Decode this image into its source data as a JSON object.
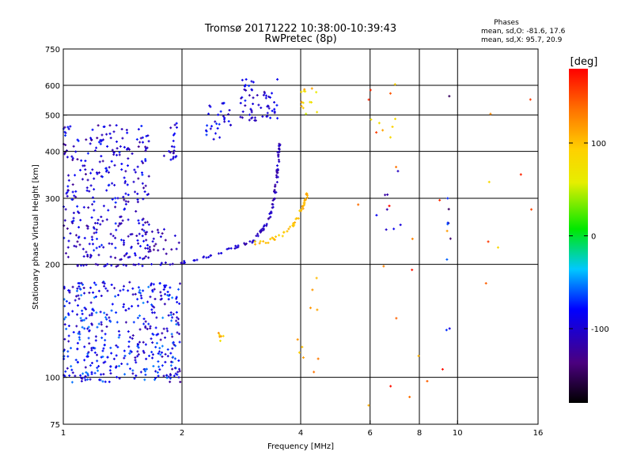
{
  "chart_data": {
    "type": "scatter",
    "title": "Tromsø 20171222 10:38:00-10:39:43",
    "subtitle": "RwPretec (8p)",
    "stats_heading": "Phases",
    "stats_lines": [
      "mean, sd,O: -81.6, 17.6",
      "mean, sd,X:  95.7, 20.9"
    ],
    "xlabel": "Frequency [MHz]",
    "ylabel": "Stationary phase Virtual Height [km]",
    "x_scale": "log",
    "y_scale": "log",
    "xlim": [
      1,
      16
    ],
    "ylim": [
      75,
      750
    ],
    "x_ticks": [
      "1",
      "2",
      "4",
      "6",
      "8",
      "10",
      "16"
    ],
    "x_tick_values": [
      1,
      2,
      4,
      6,
      8,
      10,
      16
    ],
    "x_grid_values": [
      2,
      4,
      6,
      8,
      10
    ],
    "y_ticks": [
      "750",
      "600",
      "500",
      "400",
      "300",
      "200",
      "100",
      "75"
    ],
    "y_tick_values": [
      750,
      600,
      500,
      400,
      300,
      200,
      100,
      75
    ],
    "y_grid_values": [
      600,
      500,
      400,
      300,
      200,
      100
    ],
    "grid": true,
    "colorbar": {
      "label": "[deg]",
      "min": -180,
      "max": 180,
      "ticks": [
        "100",
        "0",
        "-100"
      ],
      "tick_values": [
        100,
        0,
        -100
      ]
    },
    "features": [
      {
        "kind": "trace",
        "x": [
          1.05,
          1.15,
          1.3,
          1.5,
          1.7,
          1.9,
          2.1,
          2.3,
          2.5,
          2.7,
          2.85,
          3.0,
          3.1
        ],
        "y": [
          200,
          199,
          199,
          199,
          200,
          201,
          204,
          209,
          215,
          221,
          226,
          230,
          232
        ],
        "phase": -105,
        "jitter": 0.008,
        "per": 5
      },
      {
        "kind": "trace",
        "x": [
          3.1,
          3.2,
          3.3,
          3.38,
          3.43,
          3.46,
          3.49,
          3.51,
          3.52,
          3.53
        ],
        "y": [
          237,
          248,
          262,
          280,
          300,
          325,
          350,
          375,
          400,
          420
        ],
        "phase": -110,
        "jitter": 0.012,
        "per": 7
      },
      {
        "kind": "trace",
        "x": [
          3.0,
          3.3,
          3.6,
          3.8,
          3.95,
          4.05,
          4.12,
          4.17
        ],
        "y": [
          228,
          230,
          240,
          252,
          268,
          285,
          300,
          315
        ],
        "phase": 100,
        "jitter": 0.012,
        "per": 7
      },
      {
        "kind": "cloud",
        "x": [
          1.0,
          1.65
        ],
        "y": [
          205,
          470
        ],
        "phase": -100,
        "spread": 30,
        "n": 320
      },
      {
        "kind": "cloud",
        "x": [
          1.0,
          1.98
        ],
        "y": [
          97,
          180
        ],
        "phase": -85,
        "spread": 35,
        "n": 420
      },
      {
        "kind": "cloud",
        "x": [
          2.8,
          3.5
        ],
        "y": [
          480,
          625
        ],
        "phase": -95,
        "spread": 25,
        "n": 60
      },
      {
        "kind": "cloud",
        "x": [
          2.3,
          2.7
        ],
        "y": [
          430,
          545
        ],
        "phase": -90,
        "spread": 25,
        "n": 30
      },
      {
        "kind": "cloud",
        "x": [
          1.8,
          1.95
        ],
        "y": [
          380,
          480
        ],
        "phase": -100,
        "spread": 20,
        "n": 20
      },
      {
        "kind": "cloud",
        "x": [
          1.6,
          2.0
        ],
        "y": [
          210,
          260
        ],
        "phase": -115,
        "spread": 20,
        "n": 25
      },
      {
        "kind": "cloud",
        "x": [
          1.85,
          2.0
        ],
        "y": [
          97,
          110
        ],
        "phase": -110,
        "spread": 20,
        "n": 8
      },
      {
        "kind": "cloud",
        "x": [
          2.45,
          2.55
        ],
        "y": [
          125,
          135
        ],
        "phase": 100,
        "spread": 30,
        "n": 6
      },
      {
        "kind": "cloud",
        "x": [
          3.95,
          4.45
        ],
        "y": [
          500,
          615
        ],
        "phase": 90,
        "spread": 40,
        "n": 14
      },
      {
        "kind": "cloud",
        "x": [
          3.9,
          4.5
        ],
        "y": [
          78,
          190
        ],
        "phase": 110,
        "spread": 40,
        "n": 10
      },
      {
        "kind": "cloud",
        "x": [
          5.9,
          7.0
        ],
        "y": [
          330,
          620
        ],
        "phase": 120,
        "spread": 50,
        "n": 12
      },
      {
        "kind": "cloud",
        "x": [
          6.0,
          7.5
        ],
        "y": [
          240,
          430
        ],
        "phase": -100,
        "spread": 40,
        "n": 8
      },
      {
        "kind": "cloud",
        "x": [
          9.3,
          9.6
        ],
        "y": [
          130,
          620
        ],
        "phase": -100,
        "spread": 50,
        "n": 10
      },
      {
        "kind": "cloud",
        "x": [
          5.5,
          10.0
        ],
        "y": [
          80,
          300
        ],
        "phase": 140,
        "spread": 40,
        "n": 14
      },
      {
        "kind": "cloud",
        "x": [
          11.0,
          15.5
        ],
        "y": [
          150,
          620
        ],
        "phase": 130,
        "spread": 50,
        "n": 8
      }
    ]
  }
}
